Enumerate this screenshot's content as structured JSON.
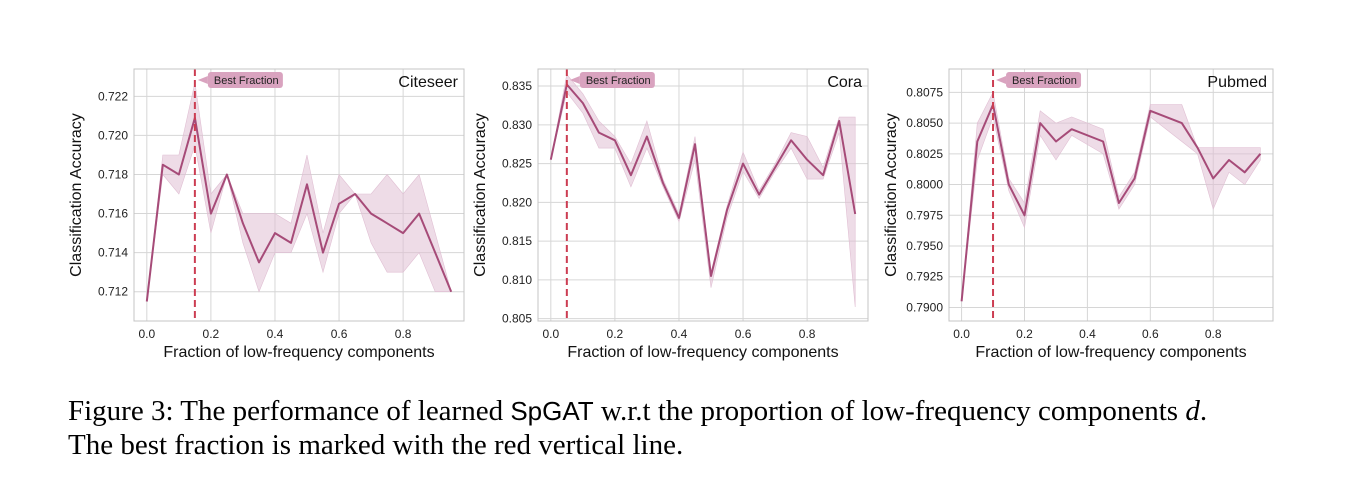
{
  "colors": {
    "line": "#a64b78",
    "band": "#e0bfd3",
    "best_line": "#cc3d52",
    "annotation_box": "#d9a3bf",
    "grid": "#d6d6d6",
    "frame": "#c4c4c4"
  },
  "chart_data": [
    {
      "type": "line",
      "panel_label": "Citeseer",
      "xlabel": "Fraction of low-frequency components",
      "ylabel": "Classification Accuracy",
      "xlim": [
        -0.04,
        0.99
      ],
      "ylim": [
        0.7105,
        0.7234
      ],
      "xticks": [
        0.0,
        0.2,
        0.4,
        0.6,
        0.8
      ],
      "xtick_labels": [
        "0.0",
        "0.2",
        "0.4",
        "0.6",
        "0.8"
      ],
      "yticks": [
        0.712,
        0.714,
        0.716,
        0.718,
        0.72,
        0.722
      ],
      "ytick_labels": [
        "0.712",
        "0.714",
        "0.716",
        "0.718",
        "0.720",
        "0.722"
      ],
      "best_fraction": 0.15,
      "annotation": "Best Fraction",
      "grid": true,
      "series": [
        {
          "x": [
            0.0,
            0.05,
            0.1,
            0.15,
            0.2,
            0.25,
            0.3,
            0.35,
            0.4,
            0.45,
            0.5,
            0.55,
            0.6,
            0.65,
            0.7,
            0.75,
            0.8,
            0.85,
            0.9,
            0.95
          ],
          "y": [
            0.7115,
            0.7185,
            0.718,
            0.7209,
            0.716,
            0.718,
            0.7155,
            0.7135,
            0.715,
            0.7145,
            0.7175,
            0.714,
            0.7165,
            0.717,
            0.716,
            0.7155,
            0.715,
            0.716,
            0.714,
            0.712
          ],
          "lower": [
            0.7115,
            0.718,
            0.717,
            0.7195,
            0.715,
            0.718,
            0.7145,
            0.712,
            0.714,
            0.714,
            0.716,
            0.713,
            0.716,
            0.717,
            0.7145,
            0.713,
            0.713,
            0.714,
            0.712,
            0.712
          ],
          "upper": [
            0.7115,
            0.719,
            0.719,
            0.7227,
            0.717,
            0.718,
            0.716,
            0.716,
            0.716,
            0.7155,
            0.719,
            0.715,
            0.718,
            0.717,
            0.717,
            0.718,
            0.717,
            0.718,
            0.715,
            0.712
          ]
        }
      ]
    },
    {
      "type": "line",
      "panel_label": "Cora",
      "xlabel": "Fraction of low-frequency components",
      "ylabel": "Classification Accuracy",
      "xlim": [
        -0.04,
        0.99
      ],
      "ylim": [
        0.8047,
        0.8372
      ],
      "xticks": [
        0.0,
        0.2,
        0.4,
        0.6,
        0.8
      ],
      "xtick_labels": [
        "0.0",
        "0.2",
        "0.4",
        "0.6",
        "0.8"
      ],
      "yticks": [
        0.805,
        0.81,
        0.815,
        0.82,
        0.825,
        0.83,
        0.835
      ],
      "ytick_labels": [
        "0.805",
        "0.810",
        "0.815",
        "0.820",
        "0.825",
        "0.830",
        "0.835"
      ],
      "best_fraction": 0.05,
      "annotation": "Best Fraction",
      "grid": true,
      "series": [
        {
          "x": [
            0.0,
            0.05,
            0.1,
            0.15,
            0.2,
            0.25,
            0.3,
            0.35,
            0.4,
            0.45,
            0.5,
            0.55,
            0.6,
            0.65,
            0.7,
            0.75,
            0.8,
            0.85,
            0.9,
            0.95
          ],
          "y": [
            0.8255,
            0.8352,
            0.8328,
            0.829,
            0.828,
            0.8235,
            0.8285,
            0.8225,
            0.818,
            0.8275,
            0.8105,
            0.819,
            0.825,
            0.821,
            0.8245,
            0.828,
            0.8255,
            0.8235,
            0.8305,
            0.8185
          ],
          "lower": [
            0.8255,
            0.8342,
            0.8315,
            0.827,
            0.827,
            0.822,
            0.827,
            0.822,
            0.8175,
            0.8255,
            0.809,
            0.818,
            0.824,
            0.8205,
            0.824,
            0.827,
            0.823,
            0.823,
            0.829,
            0.8065
          ],
          "upper": [
            0.8255,
            0.8365,
            0.834,
            0.8305,
            0.8285,
            0.825,
            0.8305,
            0.823,
            0.8185,
            0.8285,
            0.811,
            0.8195,
            0.8265,
            0.8215,
            0.825,
            0.829,
            0.8285,
            0.8245,
            0.831,
            0.831
          ]
        }
      ]
    },
    {
      "type": "line",
      "panel_label": "Pubmed",
      "xlabel": "Fraction of low-frequency components",
      "ylabel": "Classification Accuracy",
      "xlim": [
        -0.04,
        0.99
      ],
      "ylim": [
        0.7889,
        0.8094
      ],
      "xticks": [
        0.0,
        0.2,
        0.4,
        0.6,
        0.8
      ],
      "xtick_labels": [
        "0.0",
        "0.2",
        "0.4",
        "0.6",
        "0.8"
      ],
      "yticks": [
        0.79,
        0.7925,
        0.795,
        0.7975,
        0.8,
        0.8025,
        0.805,
        0.8075
      ],
      "ytick_labels": [
        "0.7900",
        "0.7925",
        "0.7950",
        "0.7975",
        "0.8000",
        "0.8025",
        "0.8050",
        "0.8075"
      ],
      "best_fraction": 0.1,
      "annotation": "Best Fraction",
      "grid": true,
      "series": [
        {
          "x": [
            0.0,
            0.05,
            0.1,
            0.15,
            0.2,
            0.25,
            0.3,
            0.35,
            0.45,
            0.5,
            0.55,
            0.6,
            0.7,
            0.75,
            0.8,
            0.85,
            0.9,
            0.95
          ],
          "y": [
            0.7905,
            0.8035,
            0.8065,
            0.8,
            0.7975,
            0.805,
            0.8035,
            0.8045,
            0.8035,
            0.7985,
            0.8005,
            0.806,
            0.805,
            0.803,
            0.8005,
            0.802,
            0.801,
            0.8025
          ],
          "lower": [
            0.7905,
            0.802,
            0.8055,
            0.7995,
            0.7965,
            0.804,
            0.802,
            0.804,
            0.8025,
            0.798,
            0.8,
            0.8055,
            0.8035,
            0.8025,
            0.798,
            0.801,
            0.8,
            0.802
          ],
          "upper": [
            0.7905,
            0.805,
            0.8075,
            0.8005,
            0.7985,
            0.806,
            0.805,
            0.8055,
            0.8045,
            0.799,
            0.801,
            0.8065,
            0.8065,
            0.803,
            0.803,
            0.803,
            0.803,
            0.803
          ]
        }
      ]
    }
  ],
  "caption": {
    "prefix": "Figure 3: The performance of learned ",
    "model": "SpGAT",
    "middle": " w.r.t the proportion of low-frequency components ",
    "symbol": "d",
    "suffix": ".",
    "line2": "The best fraction is marked with the red vertical line."
  }
}
